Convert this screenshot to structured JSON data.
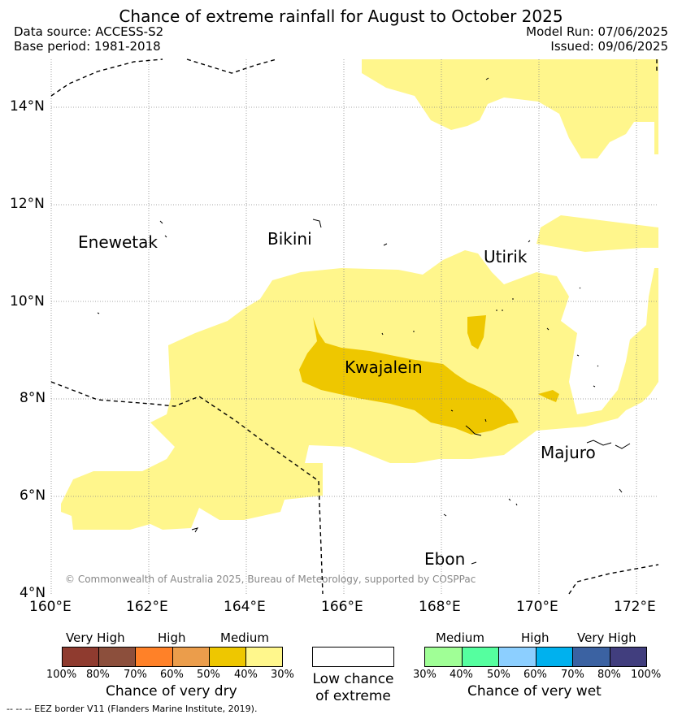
{
  "title": "Chance of extreme rainfall for August to October 2025",
  "meta": {
    "data_source": "Data source: ACCESS-S2",
    "base_period": "Base period: 1981-2018",
    "model_run": "Model Run: 07/06/2025",
    "issued": "Issued: 09/06/2025"
  },
  "axes": {
    "lon_labels": [
      "160°E",
      "162°E",
      "164°E",
      "166°E",
      "168°E",
      "170°E",
      "172°E"
    ],
    "lat_labels": [
      "4°N",
      "6°N",
      "8°N",
      "10°N",
      "12°N",
      "14°N"
    ]
  },
  "places": {
    "enewetak": "Enewetak",
    "bikini": "Bikini",
    "utirik": "Utirik",
    "kwajalein": "Kwajalein",
    "majuro": "Majuro",
    "ebon": "Ebon"
  },
  "copyright": "© Commonwealth of Australia 2025, Bureau of Meteorology, supported by COSPPac",
  "legend": {
    "dry": {
      "groups": [
        "Very High",
        "High",
        "Medium"
      ],
      "ticks": [
        "100%",
        "80%",
        "70%",
        "60%",
        "50%",
        "40%",
        "30%"
      ],
      "colors": [
        "#8f3b2f",
        "#8c4f3c",
        "#ff8128",
        "#eb9d4b",
        "#eec700",
        "#fff78c"
      ],
      "title": "Chance of very dry"
    },
    "low": {
      "line1": "Low chance",
      "line2": "of extreme",
      "color": "#ffffff"
    },
    "wet": {
      "groups": [
        "Medium",
        "High",
        "Very High"
      ],
      "ticks": [
        "30%",
        "40%",
        "50%",
        "60%",
        "70%",
        "80%",
        "100%"
      ],
      "colors": [
        "#a0ff96",
        "#55ff9f",
        "#8ccfff",
        "#00b1ee",
        "#3b62a2",
        "#413e7e"
      ],
      "title": "Chance of very wet"
    }
  },
  "colors": {
    "light_dry": "#fff68c",
    "medium_dry": "#eec700"
  },
  "footer": "--  --  -- EEZ border V11 (Flanders Marine Institute, 2019)."
}
